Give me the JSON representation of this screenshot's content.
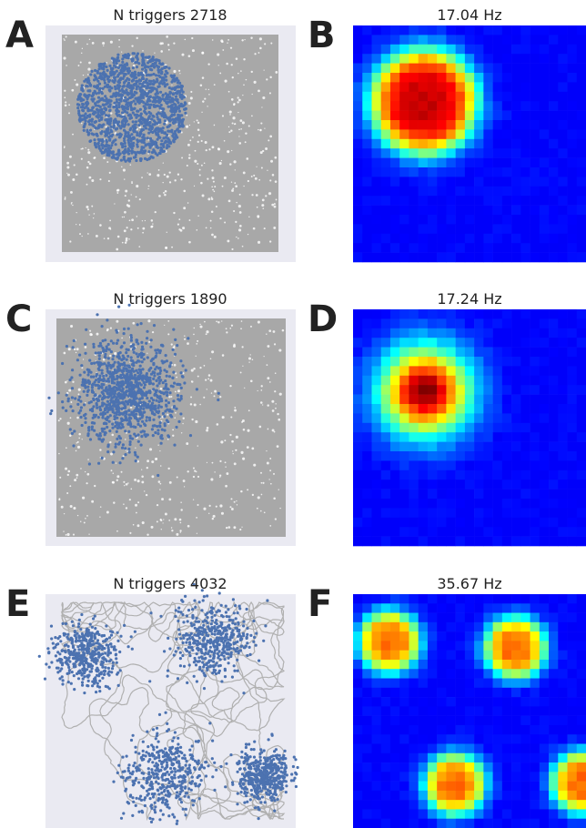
{
  "figure": {
    "panels": [
      {
        "letter": "A",
        "title": "N triggers 2718"
      },
      {
        "letter": "B",
        "title": "17.04 Hz"
      },
      {
        "letter": "C",
        "title": "N triggers 1890"
      },
      {
        "letter": "D",
        "title": "17.24 Hz"
      },
      {
        "letter": "E",
        "title": "N triggers 4032"
      },
      {
        "letter": "F",
        "title": "35.67 Hz"
      }
    ]
  }
}
